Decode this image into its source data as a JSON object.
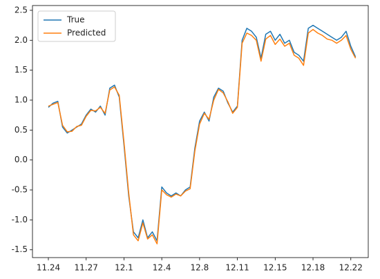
{
  "chart_data": {
    "type": "line",
    "categories": [
      "11.24",
      null,
      null,
      null,
      null,
      null,
      null,
      null,
      "11.27",
      null,
      null,
      null,
      null,
      null,
      null,
      null,
      "12.1",
      null,
      null,
      null,
      null,
      null,
      null,
      null,
      "12.4",
      null,
      null,
      null,
      null,
      null,
      null,
      null,
      "12.8",
      null,
      null,
      null,
      null,
      null,
      null,
      null,
      "12.11",
      null,
      null,
      null,
      null,
      null,
      null,
      null,
      "12.15",
      null,
      null,
      null,
      null,
      null,
      null,
      null,
      "12.18",
      null,
      null,
      null,
      null,
      null,
      null,
      null,
      "12.22",
      null
    ],
    "series": [
      {
        "name": "True",
        "color": "#1f77b4",
        "values": [
          0.88,
          0.95,
          0.98,
          0.55,
          0.45,
          0.5,
          0.55,
          0.6,
          0.75,
          0.85,
          0.8,
          0.9,
          0.75,
          1.2,
          1.25,
          1.05,
          0.25,
          -0.6,
          -1.2,
          -1.3,
          -1.0,
          -1.3,
          -1.2,
          -1.35,
          -0.45,
          -0.55,
          -0.6,
          -0.55,
          -0.6,
          -0.5,
          -0.45,
          0.2,
          0.65,
          0.8,
          0.65,
          1.05,
          1.2,
          1.15,
          0.95,
          0.8,
          0.9,
          2.0,
          2.2,
          2.15,
          2.05,
          1.7,
          2.1,
          2.15,
          2.0,
          2.1,
          1.95,
          2.0,
          1.8,
          1.75,
          1.65,
          2.2,
          2.25,
          2.2,
          2.15,
          2.1,
          2.05,
          2.0,
          2.05,
          2.15,
          1.9,
          1.72
        ]
      },
      {
        "name": "Predicted",
        "color": "#ff7f0e",
        "values": [
          0.9,
          0.93,
          0.96,
          0.58,
          0.47,
          0.48,
          0.56,
          0.58,
          0.73,
          0.83,
          0.82,
          0.88,
          0.78,
          1.17,
          1.22,
          1.08,
          0.3,
          -0.55,
          -1.25,
          -1.35,
          -1.05,
          -1.32,
          -1.25,
          -1.4,
          -0.5,
          -0.58,
          -0.62,
          -0.57,
          -0.6,
          -0.52,
          -0.48,
          0.15,
          0.6,
          0.78,
          0.68,
          1.0,
          1.18,
          1.12,
          0.97,
          0.78,
          0.88,
          1.95,
          2.12,
          2.08,
          2.0,
          1.65,
          2.02,
          2.08,
          1.93,
          2.02,
          1.9,
          1.95,
          1.75,
          1.7,
          1.58,
          2.12,
          2.18,
          2.12,
          2.08,
          2.02,
          2.0,
          1.95,
          2.0,
          2.08,
          1.85,
          1.7
        ]
      }
    ],
    "ylim": [
      -1.63,
      2.58
    ],
    "yticks": [
      -1.5,
      {
        "value": -1.0,
        "label": "-1.0"
      },
      -0.5,
      {
        "value": 0.0,
        "label": "0.0"
      },
      0.5,
      {
        "value": 1.0,
        "label": "1.0"
      },
      1.5,
      {
        "value": 2.0,
        "label": "2.0"
      },
      2.5
    ],
    "legend": "upper left"
  }
}
